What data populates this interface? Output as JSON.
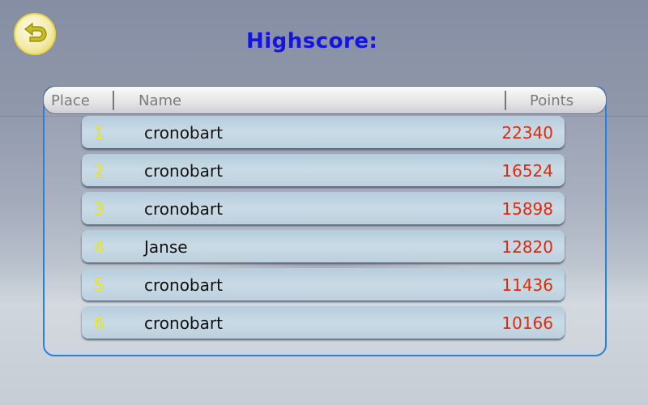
{
  "title": "Highscore:",
  "header": {
    "place": "Place",
    "name": "Name",
    "points": "Points"
  },
  "rows": [
    {
      "place": "1",
      "name": "cronobart",
      "points": "22340"
    },
    {
      "place": "2",
      "name": "cronobart",
      "points": "16524"
    },
    {
      "place": "3",
      "name": "cronobart",
      "points": "15898"
    },
    {
      "place": "4",
      "name": "Janse",
      "points": "12820"
    },
    {
      "place": "5",
      "name": "cronobart",
      "points": "11436"
    },
    {
      "place": "6",
      "name": "cronobart",
      "points": "10166"
    }
  ],
  "colors": {
    "title": "#1414e6",
    "points": "#e02a0a",
    "place": "#f2f21a",
    "border": "#2b7fdc"
  },
  "icons": {
    "back": "back-arrow-icon"
  }
}
